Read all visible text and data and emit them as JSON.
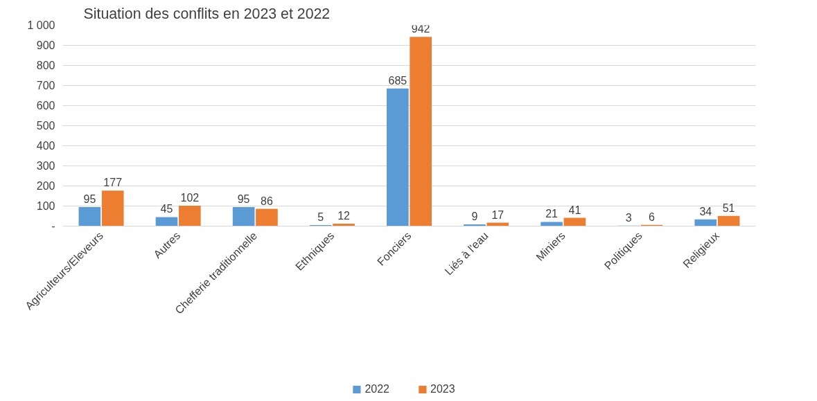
{
  "chart_data": {
    "type": "bar",
    "title": "Situation des conflits en 2023 et 2022",
    "categories": [
      "Agriculteurs/Eleveurs",
      "Autres",
      "Chefferie traditionnelle",
      "Ethniques",
      "Fonciers",
      "Liés à l'eau",
      "Miniers",
      "Politiques",
      "Religieux"
    ],
    "series": [
      {
        "name": "2022",
        "color": "#5b9bd5",
        "values": [
          95,
          45,
          95,
          5,
          685,
          9,
          21,
          3,
          34
        ]
      },
      {
        "name": "2023",
        "color": "#ed7d31",
        "values": [
          177,
          102,
          86,
          12,
          942,
          17,
          41,
          6,
          51
        ]
      }
    ],
    "ylim": [
      0,
      1000
    ],
    "yticks": [
      {
        "value": 0,
        "label": "-"
      },
      100,
      200,
      300,
      400,
      500,
      600,
      700,
      800,
      900,
      {
        "value": 1000,
        "label": "1 000"
      }
    ],
    "grid": "y",
    "legend": "bottom",
    "data_labels": true
  }
}
